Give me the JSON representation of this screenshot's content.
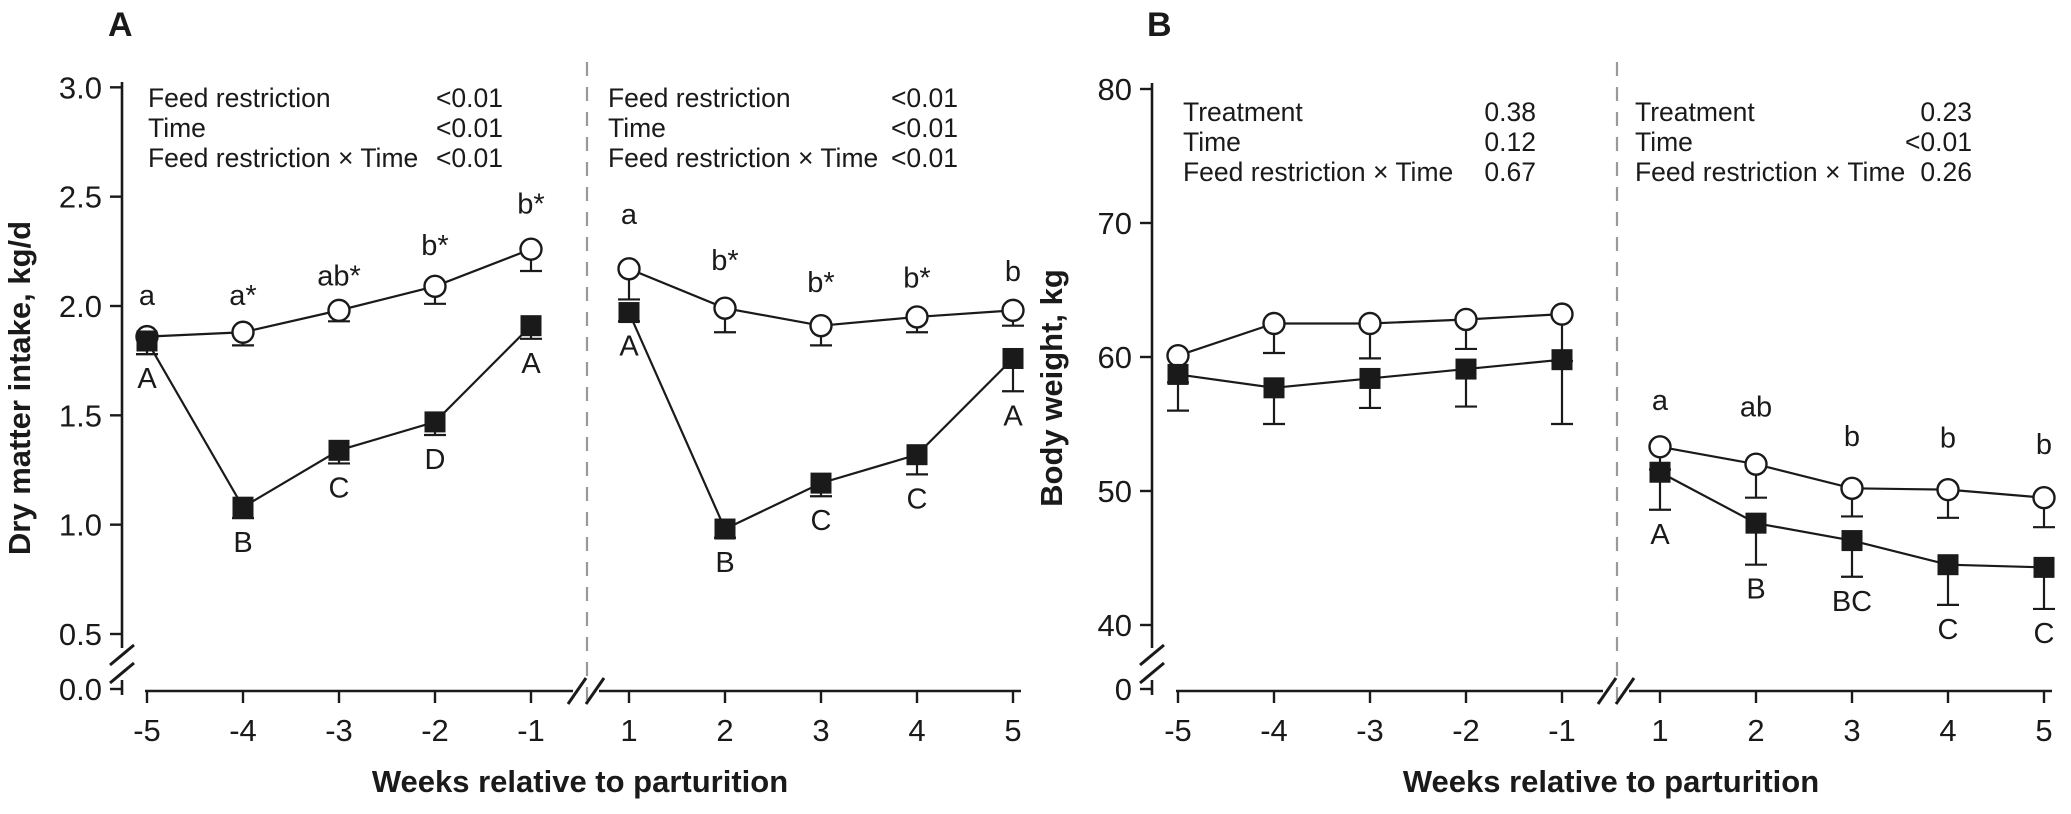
{
  "figure": {
    "x_axis_title": "Weeks relative to parturition",
    "panel_labels": [
      "A",
      "B"
    ]
  },
  "colors": {
    "stroke": "#1a1a1a",
    "dashed_divider": "#999999",
    "background": "#ffffff"
  },
  "chart_data": [
    {
      "type": "line",
      "panel_label": "A",
      "ylabel": "Dry matter intake, kg/d",
      "xlabel": "Weeks relative to parturition",
      "grid": false,
      "legend_position": "none",
      "ylim": [
        0,
        3.0
      ],
      "axis_breaks": {
        "y_between": [
          "0.0",
          "0.5"
        ],
        "x_between": [
          "-1",
          "1"
        ]
      },
      "x_tick_labels": [
        "-5",
        "-4",
        "-3",
        "-2",
        "-1",
        "1",
        "2",
        "3",
        "4",
        "5"
      ],
      "y_ticks": [
        {
          "value": 0,
          "label": "0.0"
        },
        {
          "value": 0.5,
          "label": "0.5"
        },
        {
          "value": 1,
          "label": "1.0"
        },
        {
          "value": 1.5,
          "label": "1.5"
        },
        {
          "value": 2,
          "label": "2.0"
        },
        {
          "value": 2.5,
          "label": "2.5"
        },
        {
          "value": 3,
          "label": "3.0"
        }
      ],
      "subpanels": [
        {
          "name": "prepartum",
          "stats": [
            {
              "label": "Feed restriction",
              "value": "<0.01"
            },
            {
              "label": "Time",
              "value": "<0.01"
            },
            {
              "label": "Feed restriction × Time",
              "value": "<0.01"
            }
          ],
          "series": [
            {
              "marker": "open-circle",
              "error_direction": "up",
              "letter_side": "above",
              "x": [
                "-5",
                "-4",
                "-3",
                "-2",
                "-1"
              ],
              "y": [
                1.86,
                1.88,
                1.98,
                2.09,
                2.26
              ],
              "err": [
                0.08,
                0.06,
                0.05,
                0.08,
                0.1
              ],
              "letters": [
                "a",
                "a*",
                "ab*",
                "b*",
                "b*"
              ]
            },
            {
              "marker": "filled-square",
              "error_direction": "down",
              "letter_side": "below",
              "x": [
                "-5",
                "-4",
                "-3",
                "-2",
                "-1"
              ],
              "y": [
                1.84,
                1.08,
                1.34,
                1.47,
                1.91
              ],
              "err": [
                0.06,
                0.05,
                0.06,
                0.06,
                0.06
              ],
              "letters": [
                "A",
                "B",
                "C",
                "D",
                "A"
              ]
            }
          ]
        },
        {
          "name": "postpartum",
          "stats": [
            {
              "label": "Feed restriction",
              "value": "<0.01"
            },
            {
              "label": "Time",
              "value": "<0.01"
            },
            {
              "label": "Feed restriction × Time",
              "value": "<0.01"
            }
          ],
          "series": [
            {
              "marker": "open-circle",
              "error_direction": "up",
              "letter_side": "above",
              "x": [
                "1",
                "2",
                "3",
                "4",
                "5"
              ],
              "y": [
                2.17,
                1.99,
                1.91,
                1.95,
                1.98
              ],
              "err": [
                0.14,
                0.11,
                0.09,
                0.07,
                0.07
              ],
              "letters": [
                "a",
                "b*",
                "b*",
                "b*",
                "b"
              ]
            },
            {
              "marker": "filled-square",
              "error_direction": "down",
              "letter_side": "below",
              "x": [
                "1",
                "2",
                "3",
                "4",
                "5"
              ],
              "y": [
                1.97,
                0.98,
                1.19,
                1.32,
                1.76
              ],
              "err": [
                0.04,
                0.04,
                0.06,
                0.09,
                0.15
              ],
              "letters": [
                "A",
                "B",
                "C",
                "C",
                "A"
              ]
            }
          ]
        }
      ]
    },
    {
      "type": "line",
      "panel_label": "B",
      "ylabel": "Body weight, kg",
      "xlabel": "Weeks relative to parturition",
      "grid": false,
      "legend_position": "none",
      "ylim": [
        0,
        80
      ],
      "axis_breaks": {
        "y_between": [
          "0",
          "40"
        ],
        "x_between": [
          "-1",
          "1"
        ]
      },
      "x_tick_labels": [
        "-5",
        "-4",
        "-3",
        "-2",
        "-1",
        "1",
        "2",
        "3",
        "4",
        "5"
      ],
      "y_ticks": [
        {
          "value": 0,
          "label": "0"
        },
        {
          "value": 40,
          "label": "40"
        },
        {
          "value": 50,
          "label": "50"
        },
        {
          "value": 60,
          "label": "60"
        },
        {
          "value": 70,
          "label": "70"
        },
        {
          "value": 80,
          "label": "80"
        }
      ],
      "subpanels": [
        {
          "name": "prepartum",
          "stats": [
            {
              "label": "Treatment",
              "value": "0.38"
            },
            {
              "label": "Time",
              "value": "0.12"
            },
            {
              "label": "Feed restriction × Time",
              "value": "0.67"
            }
          ],
          "series": [
            {
              "marker": "open-circle",
              "error_direction": "up",
              "letter_side": "above",
              "x": [
                "-5",
                "-4",
                "-3",
                "-2",
                "-1"
              ],
              "y": [
                60.1,
                62.5,
                62.5,
                62.8,
                63.2
              ],
              "err": [
                2.0,
                2.2,
                2.6,
                2.2,
                3.5
              ],
              "letters": [
                "",
                "",
                "",
                "",
                ""
              ]
            },
            {
              "marker": "filled-square",
              "error_direction": "down",
              "letter_side": "below",
              "x": [
                "-5",
                "-4",
                "-3",
                "-2",
                "-1"
              ],
              "y": [
                58.7,
                57.7,
                58.4,
                59.1,
                59.8
              ],
              "err": [
                2.7,
                2.7,
                2.2,
                2.8,
                4.8
              ],
              "letters": [
                "",
                "",
                "",
                "",
                ""
              ]
            }
          ]
        },
        {
          "name": "postpartum",
          "stats": [
            {
              "label": "Treatment",
              "value": "0.23"
            },
            {
              "label": "Time",
              "value": "<0.01"
            },
            {
              "label": "Feed restriction × Time",
              "value": "0.26"
            }
          ],
          "series": [
            {
              "marker": "open-circle",
              "error_direction": "up",
              "letter_side": "above",
              "x": [
                "1",
                "2",
                "3",
                "4",
                "5"
              ],
              "y": [
                53.3,
                52.0,
                50.2,
                50.1,
                49.5
              ],
              "err": [
                1.7,
                2.5,
                2.1,
                2.1,
                2.2
              ],
              "letters": [
                "a",
                "ab",
                "b",
                "b",
                "b"
              ]
            },
            {
              "marker": "filled-square",
              "error_direction": "down",
              "letter_side": "below",
              "x": [
                "1",
                "2",
                "3",
                "4",
                "5"
              ],
              "y": [
                51.4,
                47.6,
                46.3,
                44.5,
                44.3
              ],
              "err": [
                2.8,
                3.1,
                2.7,
                3.0,
                3.1
              ],
              "letters": [
                "A",
                "B",
                "BC",
                "C",
                "C"
              ]
            }
          ]
        }
      ]
    }
  ]
}
